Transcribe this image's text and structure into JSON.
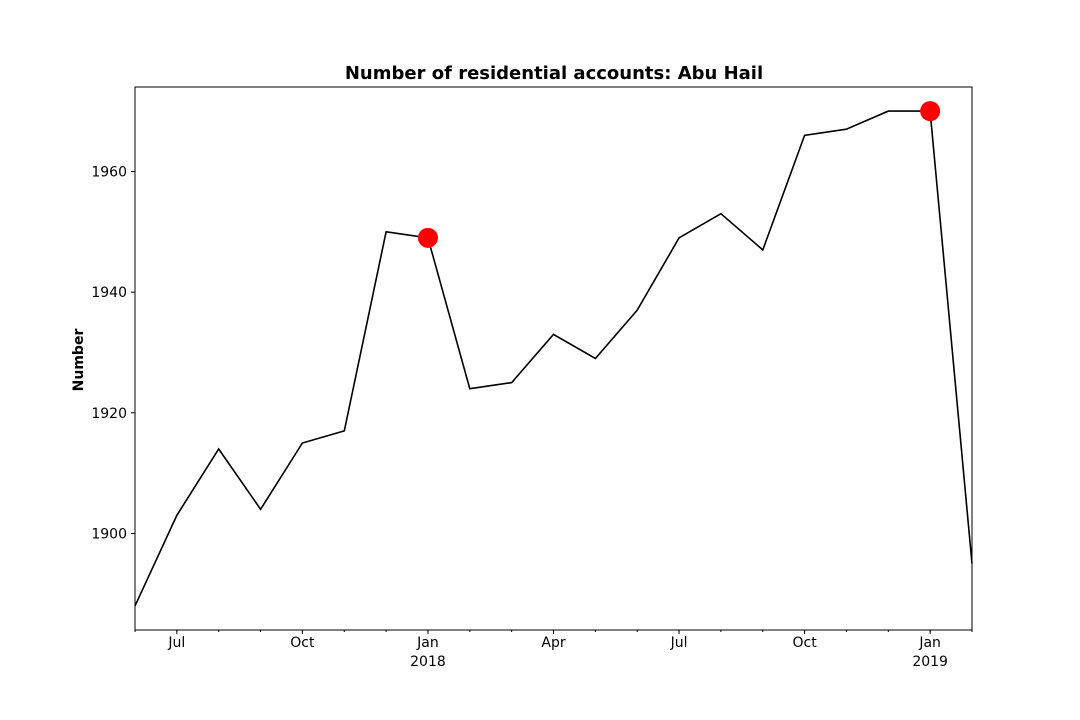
{
  "chart_data": {
    "type": "line",
    "title": "Number of residential accounts: Abu Hail",
    "xlabel": "",
    "ylabel": "Number",
    "x": [
      "2017-06",
      "2017-07",
      "2017-08",
      "2017-09",
      "2017-10",
      "2017-11",
      "2017-12",
      "2018-01",
      "2018-02",
      "2018-03",
      "2018-04",
      "2018-05",
      "2018-06",
      "2018-07",
      "2018-08",
      "2018-09",
      "2018-10",
      "2018-11",
      "2018-12",
      "2019-01",
      "2019-02"
    ],
    "series": [
      {
        "values": [
          1888,
          1903,
          1914,
          1904,
          1915,
          1917,
          1950,
          1949,
          1924,
          1925,
          1933,
          1929,
          1937,
          1949,
          1953,
          1947,
          1966,
          1967,
          1970,
          1970,
          1895
        ],
        "color": "#000000"
      }
    ],
    "highlights": [
      {
        "x": "2018-01",
        "y": 1949,
        "color": "#ff0000"
      },
      {
        "x": "2019-01",
        "y": 1970,
        "color": "#ff0000"
      }
    ],
    "xlim": [
      "2017-06",
      "2019-02"
    ],
    "ylim": [
      1884,
      1974
    ],
    "yticks": [
      1900,
      1920,
      1940,
      1960
    ],
    "xticks": [
      {
        "x": "2017-07",
        "label": "Jul",
        "sublabel": ""
      },
      {
        "x": "2017-10",
        "label": "Oct",
        "sublabel": ""
      },
      {
        "x": "2018-01",
        "label": "Jan",
        "sublabel": "2018"
      },
      {
        "x": "2018-04",
        "label": "Apr",
        "sublabel": ""
      },
      {
        "x": "2018-07",
        "label": "Jul",
        "sublabel": ""
      },
      {
        "x": "2018-10",
        "label": "Oct",
        "sublabel": ""
      },
      {
        "x": "2019-01",
        "label": "Jan",
        "sublabel": "2019"
      }
    ],
    "grid": false,
    "legend": "none"
  }
}
